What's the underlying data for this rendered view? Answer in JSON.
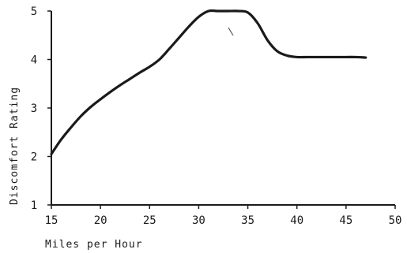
{
  "chart_data": {
    "type": "line",
    "title": "",
    "xlabel": "Miles per Hour",
    "ylabel": "Discomfort Rating",
    "xlim": [
      15,
      50
    ],
    "ylim": [
      1,
      5
    ],
    "x_ticks": [
      15,
      20,
      25,
      30,
      35,
      40,
      45,
      50
    ],
    "y_ticks": [
      1,
      2,
      3,
      4,
      5
    ],
    "grid": false,
    "legend": "none",
    "series": [
      {
        "x": [
          15,
          16,
          17,
          18,
          19,
          20,
          21,
          22,
          23,
          24,
          25,
          26,
          27,
          28,
          29,
          30,
          31,
          32,
          33,
          34,
          35,
          36,
          37,
          38,
          39,
          40,
          41,
          42,
          43,
          44,
          45,
          46,
          47
        ],
        "y": [
          2.05,
          2.35,
          2.6,
          2.83,
          3.02,
          3.18,
          3.33,
          3.47,
          3.6,
          3.73,
          3.85,
          4.0,
          4.22,
          4.45,
          4.68,
          4.88,
          5.0,
          5.0,
          5.0,
          5.0,
          4.97,
          4.75,
          4.4,
          4.17,
          4.08,
          4.05,
          4.05,
          4.05,
          4.05,
          4.05,
          4.05,
          4.05,
          4.04
        ],
        "color": "#1a1a1a"
      }
    ]
  }
}
